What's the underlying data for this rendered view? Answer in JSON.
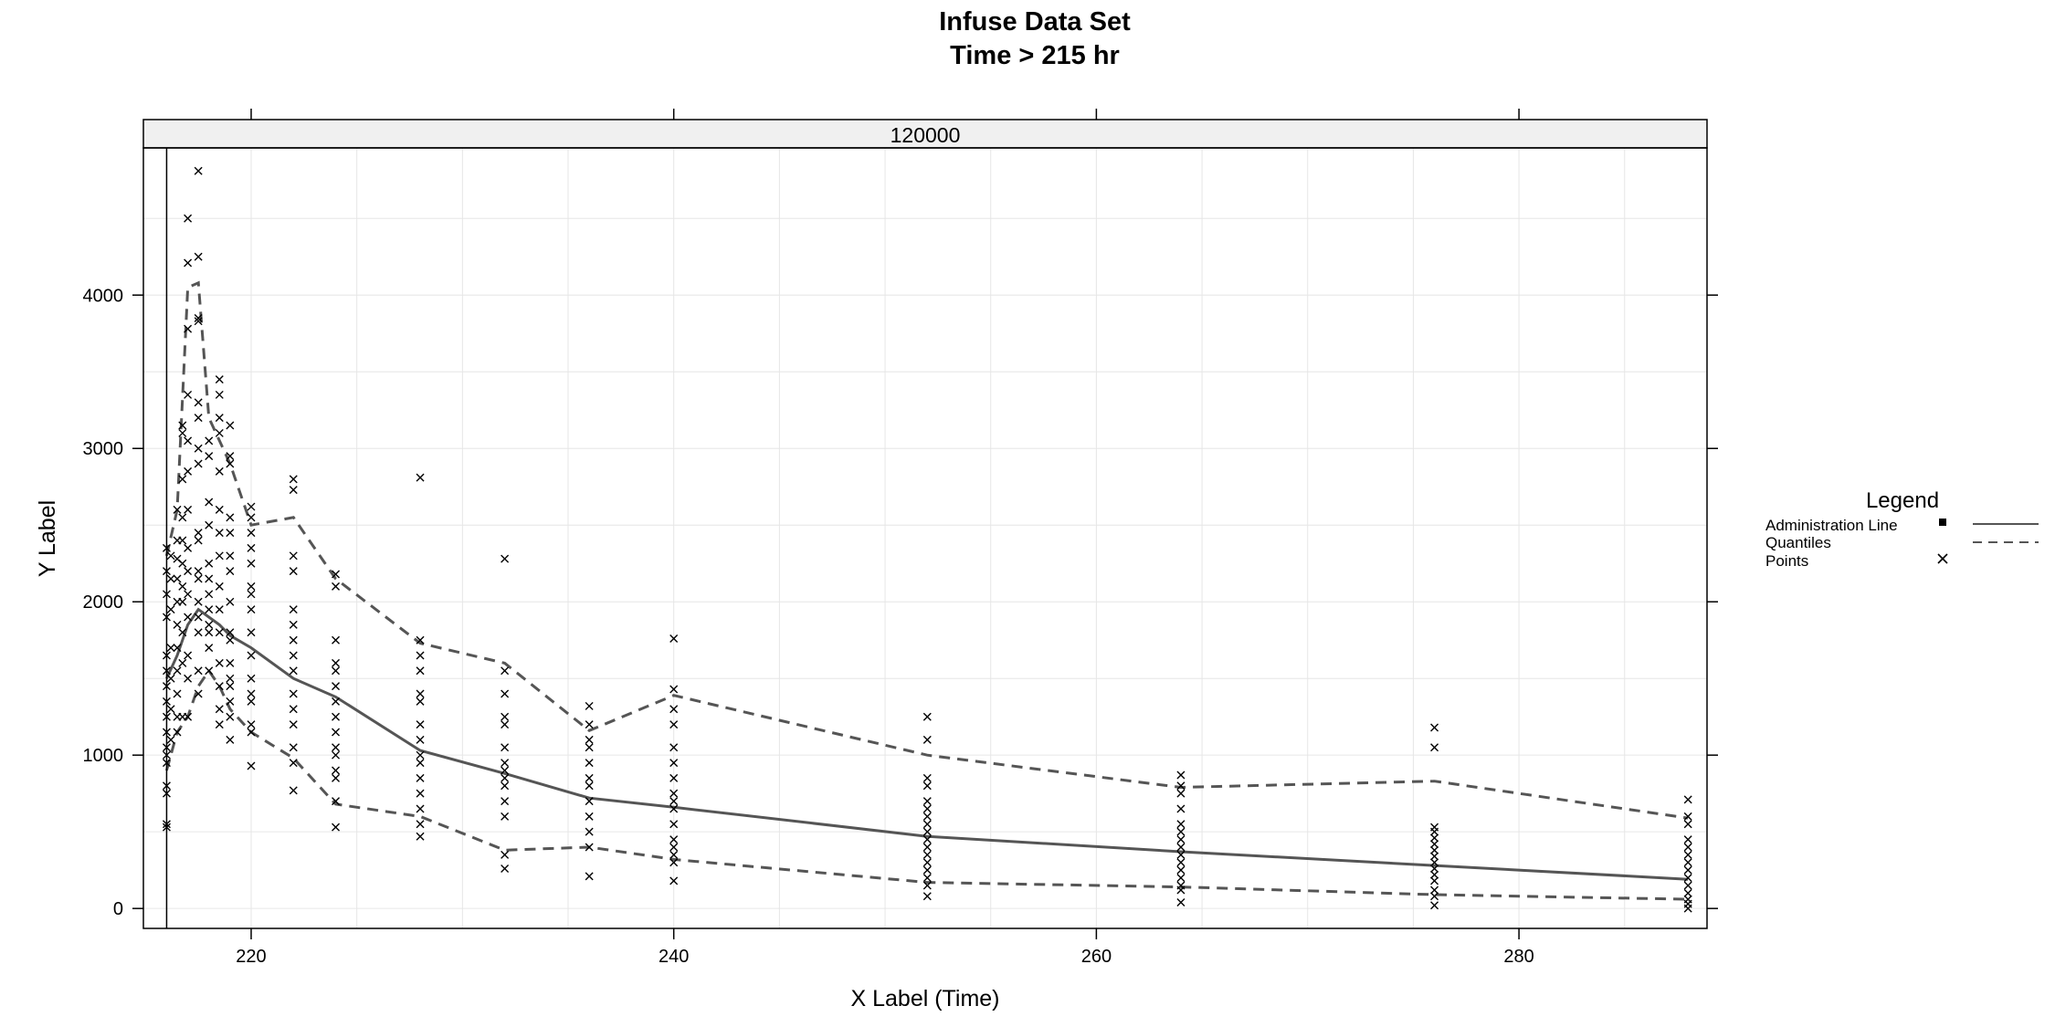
{
  "chart_data": {
    "type": "scatter",
    "title": "Infuse Data Set",
    "subtitle": "Time > 215 hr",
    "xlabel": "X Label (Time)",
    "ylabel": "Y Label",
    "panel_label": "120000",
    "xlim": [
      214.9,
      288.9
    ],
    "ylim": [
      -130,
      4960
    ],
    "x_ticks": [
      220,
      240,
      260,
      280
    ],
    "y_ticks": [
      0,
      1000,
      2000,
      3000,
      4000
    ],
    "grid": true,
    "legend_position": "right",
    "administration_line_x": 216,
    "legend": {
      "title": "Legend",
      "entries": [
        {
          "label": "Administration Line",
          "symbol": "line-solid"
        },
        {
          "label": "Quantiles",
          "symbol": "line-dashed"
        },
        {
          "label": "Points",
          "symbol": "x-marker"
        }
      ]
    },
    "series": [
      {
        "name": "Quantiles",
        "style": "solid",
        "x": [
          216,
          216.5,
          217,
          217.5,
          218,
          218.5,
          219,
          220,
          222,
          224,
          228,
          232,
          236,
          240,
          252,
          264,
          276,
          288
        ],
        "y": [
          1500,
          1650,
          1850,
          1950,
          1900,
          1850,
          1780,
          1700,
          1500,
          1380,
          1030,
          880,
          720,
          660,
          470,
          370,
          280,
          190
        ]
      },
      {
        "name": "Quantiles",
        "style": "dashed",
        "x": [
          216,
          216.5,
          217,
          217.5,
          218,
          218.5,
          219,
          220,
          222,
          224,
          228,
          232,
          236,
          240,
          252,
          264,
          276,
          288
        ],
        "y": [
          2300,
          2600,
          4050,
          4080,
          3200,
          3050,
          2900,
          2500,
          2550,
          2150,
          1730,
          1600,
          1160,
          1390,
          1000,
          790,
          830,
          590
        ]
      },
      {
        "name": "Quantiles",
        "style": "dashed",
        "x": [
          216,
          216.5,
          217,
          217.5,
          218,
          218.5,
          219,
          220,
          222,
          224,
          228,
          232,
          236,
          240,
          252,
          264,
          276,
          288
        ],
        "y": [
          900,
          1150,
          1250,
          1450,
          1550,
          1450,
          1300,
          1150,
          980,
          680,
          600,
          380,
          400,
          320,
          170,
          140,
          90,
          60
        ]
      },
      {
        "name": "Points",
        "style": "x",
        "points": [
          [
            216,
            530
          ],
          [
            216,
            550
          ],
          [
            216,
            750
          ],
          [
            216,
            800
          ],
          [
            216,
            950
          ],
          [
            216,
            1000
          ],
          [
            216,
            1050
          ],
          [
            216,
            1150
          ],
          [
            216,
            1250
          ],
          [
            216,
            1350
          ],
          [
            216,
            1450
          ],
          [
            216,
            1550
          ],
          [
            216,
            1650
          ],
          [
            216,
            1900
          ],
          [
            216,
            2050
          ],
          [
            216,
            2200
          ],
          [
            216,
            2350
          ],
          [
            216.2,
            1100
          ],
          [
            216.2,
            1300
          ],
          [
            216.2,
            1500
          ],
          [
            216.2,
            1700
          ],
          [
            216.2,
            1950
          ],
          [
            216.2,
            2150
          ],
          [
            216.2,
            2300
          ],
          [
            216.5,
            1150
          ],
          [
            216.5,
            1250
          ],
          [
            216.5,
            1400
          ],
          [
            216.5,
            1550
          ],
          [
            216.5,
            1700
          ],
          [
            216.5,
            1850
          ],
          [
            216.5,
            2000
          ],
          [
            216.5,
            2150
          ],
          [
            216.5,
            2280
          ],
          [
            216.5,
            2400
          ],
          [
            216.5,
            2600
          ],
          [
            216.75,
            1250
          ],
          [
            216.75,
            1600
          ],
          [
            216.75,
            1800
          ],
          [
            216.75,
            2000
          ],
          [
            216.75,
            2100
          ],
          [
            216.75,
            2250
          ],
          [
            216.75,
            2400
          ],
          [
            216.75,
            2550
          ],
          [
            216.75,
            2800
          ],
          [
            216.75,
            3100
          ],
          [
            216.75,
            3150
          ],
          [
            217,
            1250
          ],
          [
            217,
            1500
          ],
          [
            217,
            1650
          ],
          [
            217,
            1900
          ],
          [
            217,
            2050
          ],
          [
            217,
            2200
          ],
          [
            217,
            2350
          ],
          [
            217,
            2600
          ],
          [
            217,
            2850
          ],
          [
            217,
            3050
          ],
          [
            217,
            3350
          ],
          [
            217,
            3780
          ],
          [
            217,
            4210
          ],
          [
            217,
            4500
          ],
          [
            217.5,
            1400
          ],
          [
            217.5,
            1550
          ],
          [
            217.5,
            1800
          ],
          [
            217.5,
            1900
          ],
          [
            217.5,
            2000
          ],
          [
            217.5,
            2150
          ],
          [
            217.5,
            2200
          ],
          [
            217.5,
            2400
          ],
          [
            217.5,
            2450
          ],
          [
            217.5,
            2900
          ],
          [
            217.5,
            3000
          ],
          [
            217.5,
            3200
          ],
          [
            217.5,
            3300
          ],
          [
            217.5,
            3830
          ],
          [
            217.5,
            3850
          ],
          [
            217.5,
            4250
          ],
          [
            217.5,
            4810
          ],
          [
            218,
            1550
          ],
          [
            218,
            1700
          ],
          [
            218,
            1800
          ],
          [
            218,
            1850
          ],
          [
            218,
            1950
          ],
          [
            218,
            2050
          ],
          [
            218,
            2150
          ],
          [
            218,
            2250
          ],
          [
            218,
            2500
          ],
          [
            218,
            2650
          ],
          [
            218,
            2950
          ],
          [
            218,
            3050
          ],
          [
            218.5,
            1200
          ],
          [
            218.5,
            1300
          ],
          [
            218.5,
            1450
          ],
          [
            218.5,
            1600
          ],
          [
            218.5,
            1800
          ],
          [
            218.5,
            1950
          ],
          [
            218.5,
            2100
          ],
          [
            218.5,
            2300
          ],
          [
            218.5,
            2450
          ],
          [
            218.5,
            2600
          ],
          [
            218.5,
            2850
          ],
          [
            218.5,
            3100
          ],
          [
            218.5,
            3200
          ],
          [
            218.5,
            3350
          ],
          [
            218.5,
            3450
          ],
          [
            219,
            1100
          ],
          [
            219,
            1250
          ],
          [
            219,
            1350
          ],
          [
            219,
            1450
          ],
          [
            219,
            1500
          ],
          [
            219,
            1600
          ],
          [
            219,
            1750
          ],
          [
            219,
            1800
          ],
          [
            219,
            2000
          ],
          [
            219,
            2200
          ],
          [
            219,
            2300
          ],
          [
            219,
            2450
          ],
          [
            219,
            2550
          ],
          [
            219,
            2900
          ],
          [
            219,
            2950
          ],
          [
            219,
            3150
          ],
          [
            220,
            930
          ],
          [
            220,
            1150
          ],
          [
            220,
            1200
          ],
          [
            220,
            1350
          ],
          [
            220,
            1400
          ],
          [
            220,
            1500
          ],
          [
            220,
            1650
          ],
          [
            220,
            1800
          ],
          [
            220,
            1950
          ],
          [
            220,
            2050
          ],
          [
            220,
            2100
          ],
          [
            220,
            2250
          ],
          [
            220,
            2350
          ],
          [
            220,
            2450
          ],
          [
            220,
            2550
          ],
          [
            220,
            2620
          ],
          [
            222,
            770
          ],
          [
            222,
            950
          ],
          [
            222,
            1050
          ],
          [
            222,
            1200
          ],
          [
            222,
            1300
          ],
          [
            222,
            1400
          ],
          [
            222,
            1550
          ],
          [
            222,
            1650
          ],
          [
            222,
            1750
          ],
          [
            222,
            1850
          ],
          [
            222,
            1950
          ],
          [
            222,
            2200
          ],
          [
            222,
            2300
          ],
          [
            222,
            2730
          ],
          [
            222,
            2800
          ],
          [
            224,
            530
          ],
          [
            224,
            700
          ],
          [
            224,
            850
          ],
          [
            224,
            900
          ],
          [
            224,
            1000
          ],
          [
            224,
            1050
          ],
          [
            224,
            1150
          ],
          [
            224,
            1250
          ],
          [
            224,
            1350
          ],
          [
            224,
            1450
          ],
          [
            224,
            1550
          ],
          [
            224,
            1600
          ],
          [
            224,
            1750
          ],
          [
            224,
            2100
          ],
          [
            224,
            2180
          ],
          [
            228,
            470
          ],
          [
            228,
            550
          ],
          [
            228,
            650
          ],
          [
            228,
            750
          ],
          [
            228,
            850
          ],
          [
            228,
            950
          ],
          [
            228,
            1000
          ],
          [
            228,
            1100
          ],
          [
            228,
            1200
          ],
          [
            228,
            1350
          ],
          [
            228,
            1400
          ],
          [
            228,
            1550
          ],
          [
            228,
            1650
          ],
          [
            228,
            1750
          ],
          [
            228,
            2810
          ],
          [
            232,
            260
          ],
          [
            232,
            350
          ],
          [
            232,
            600
          ],
          [
            232,
            700
          ],
          [
            232,
            800
          ],
          [
            232,
            850
          ],
          [
            232,
            900
          ],
          [
            232,
            950
          ],
          [
            232,
            1050
          ],
          [
            232,
            1200
          ],
          [
            232,
            1250
          ],
          [
            232,
            1400
          ],
          [
            232,
            1550
          ],
          [
            232,
            2280
          ],
          [
            236,
            210
          ],
          [
            236,
            400
          ],
          [
            236,
            500
          ],
          [
            236,
            600
          ],
          [
            236,
            700
          ],
          [
            236,
            800
          ],
          [
            236,
            850
          ],
          [
            236,
            950
          ],
          [
            236,
            1050
          ],
          [
            236,
            1100
          ],
          [
            236,
            1200
          ],
          [
            236,
            1320
          ],
          [
            240,
            180
          ],
          [
            240,
            300
          ],
          [
            240,
            350
          ],
          [
            240,
            400
          ],
          [
            240,
            450
          ],
          [
            240,
            550
          ],
          [
            240,
            650
          ],
          [
            240,
            700
          ],
          [
            240,
            750
          ],
          [
            240,
            850
          ],
          [
            240,
            950
          ],
          [
            240,
            1050
          ],
          [
            240,
            1200
          ],
          [
            240,
            1300
          ],
          [
            240,
            1430
          ],
          [
            240,
            1760
          ],
          [
            252,
            80
          ],
          [
            252,
            150
          ],
          [
            252,
            200
          ],
          [
            252,
            250
          ],
          [
            252,
            300
          ],
          [
            252,
            350
          ],
          [
            252,
            400
          ],
          [
            252,
            450
          ],
          [
            252,
            500
          ],
          [
            252,
            550
          ],
          [
            252,
            600
          ],
          [
            252,
            650
          ],
          [
            252,
            700
          ],
          [
            252,
            800
          ],
          [
            252,
            850
          ],
          [
            252,
            1100
          ],
          [
            252,
            1250
          ],
          [
            264,
            40
          ],
          [
            264,
            120
          ],
          [
            264,
            150
          ],
          [
            264,
            200
          ],
          [
            264,
            250
          ],
          [
            264,
            300
          ],
          [
            264,
            350
          ],
          [
            264,
            400
          ],
          [
            264,
            450
          ],
          [
            264,
            500
          ],
          [
            264,
            550
          ],
          [
            264,
            650
          ],
          [
            264,
            750
          ],
          [
            264,
            800
          ],
          [
            264,
            870
          ],
          [
            276,
            20
          ],
          [
            276,
            80
          ],
          [
            276,
            120
          ],
          [
            276,
            180
          ],
          [
            276,
            220
          ],
          [
            276,
            260
          ],
          [
            276,
            300
          ],
          [
            276,
            340
          ],
          [
            276,
            380
          ],
          [
            276,
            420
          ],
          [
            276,
            460
          ],
          [
            276,
            500
          ],
          [
            276,
            530
          ],
          [
            276,
            1050
          ],
          [
            276,
            1180
          ],
          [
            288,
            0
          ],
          [
            288,
            30
          ],
          [
            288,
            60
          ],
          [
            288,
            100
          ],
          [
            288,
            150
          ],
          [
            288,
            200
          ],
          [
            288,
            250
          ],
          [
            288,
            300
          ],
          [
            288,
            350
          ],
          [
            288,
            400
          ],
          [
            288,
            450
          ],
          [
            288,
            550
          ],
          [
            288,
            600
          ],
          [
            288,
            710
          ]
        ]
      }
    ]
  }
}
